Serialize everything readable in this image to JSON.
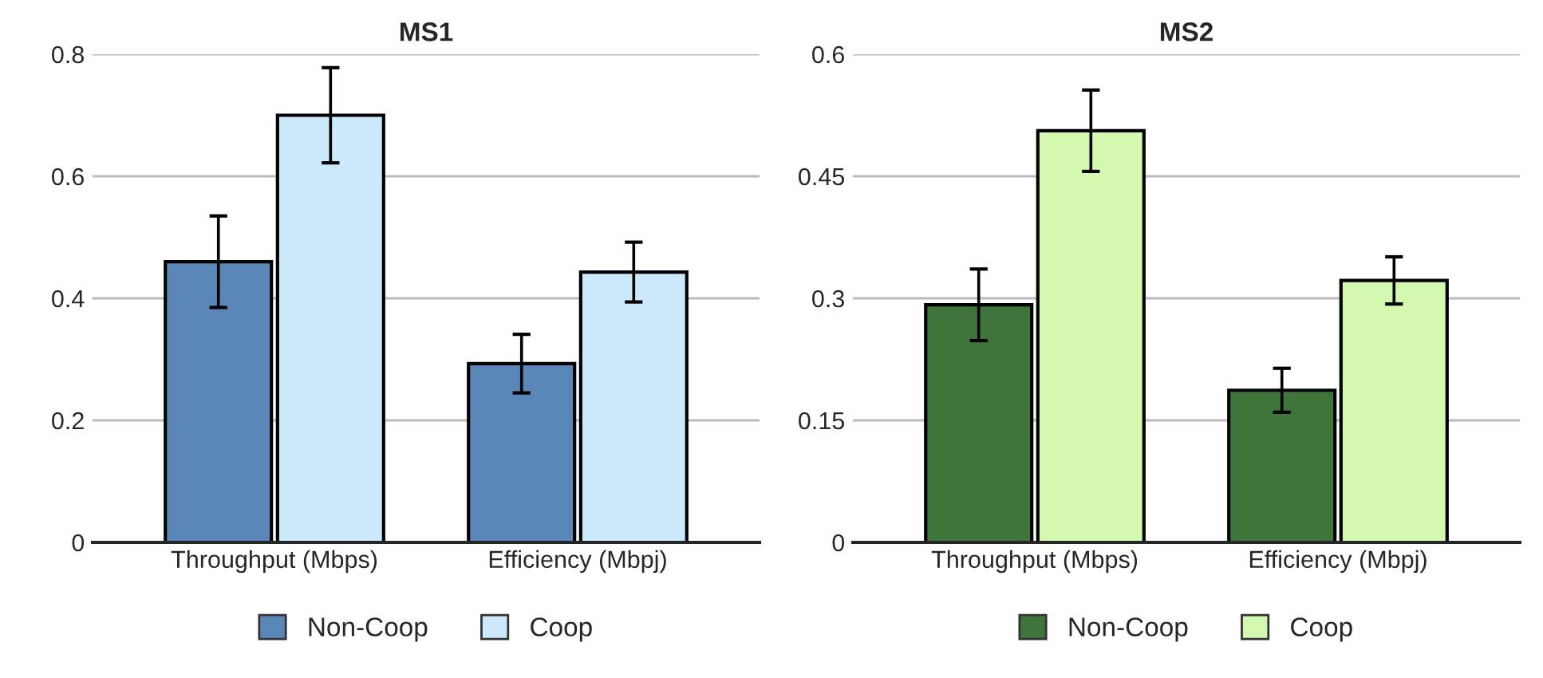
{
  "chart_data": [
    {
      "type": "bar",
      "title": "MS1",
      "categories": [
        "Throughput (Mbps)",
        "Efficiency (Mbpj)"
      ],
      "series": [
        {
          "name": "Non-Coop",
          "color": "#5b87b8",
          "values": [
            0.46,
            0.293
          ],
          "errors": [
            0.075,
            0.048
          ]
        },
        {
          "name": "Coop",
          "color": "#cce9fc",
          "values": [
            0.7,
            0.443
          ],
          "errors": [
            0.078,
            0.049
          ]
        }
      ],
      "ylim": [
        0,
        0.8
      ],
      "yticks": [
        0,
        0.2,
        0.4,
        0.6,
        0.8
      ],
      "grid": "y",
      "legend": "bottom"
    },
    {
      "type": "bar",
      "title": "MS2",
      "categories": [
        "Throughput (Mbps)",
        "Efficiency (Mbpj)"
      ],
      "series": [
        {
          "name": "Non-Coop",
          "color": "#3f743a",
          "values": [
            0.292,
            0.187
          ],
          "errors": [
            0.044,
            0.027
          ]
        },
        {
          "name": "Coop",
          "color": "#d3f8b0",
          "values": [
            0.506,
            0.322
          ],
          "errors": [
            0.05,
            0.029
          ]
        }
      ],
      "ylim": [
        0,
        0.6
      ],
      "yticks": [
        0,
        0.15,
        0.3,
        0.45,
        0.6
      ],
      "grid": "y",
      "legend": "bottom"
    }
  ]
}
